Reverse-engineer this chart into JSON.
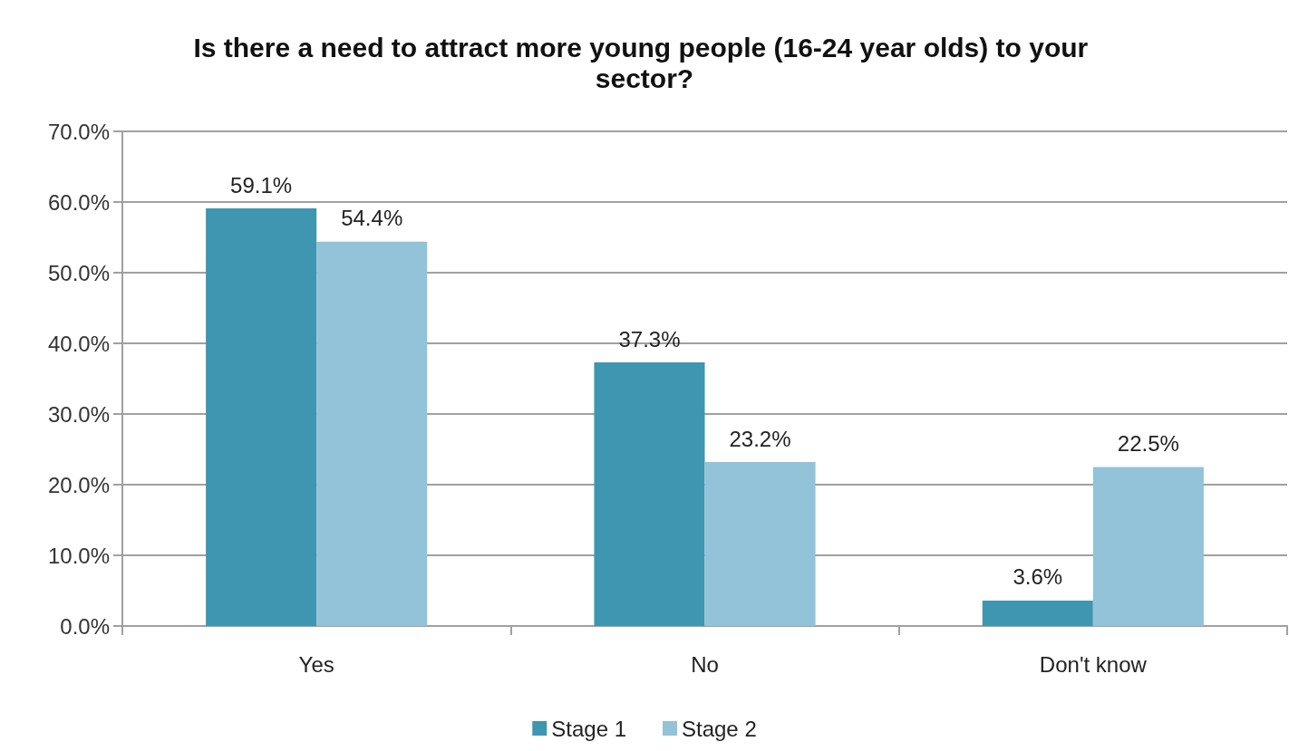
{
  "chart_data": {
    "type": "bar",
    "title": "Is there a need to attract more young people (16-24 year olds) to your sector?",
    "categories": [
      "Yes",
      "No",
      "Don't know"
    ],
    "series": [
      {
        "name": "Stage 1",
        "color": "#3f96b0",
        "values": [
          59.1,
          37.3,
          3.6
        ],
        "value_labels": [
          "59.1%",
          "37.3%",
          "3.6%"
        ]
      },
      {
        "name": "Stage 2",
        "color": "#92c3d8",
        "values": [
          54.4,
          23.2,
          22.5
        ],
        "value_labels": [
          "54.4%",
          "23.2%",
          "22.5%"
        ]
      }
    ],
    "ylim": [
      0,
      70
    ],
    "yticks": [
      {
        "value": 0,
        "label": "0.0%"
      },
      {
        "value": 10,
        "label": "10.0%"
      },
      {
        "value": 20,
        "label": "20.0%"
      },
      {
        "value": 30,
        "label": "30.0%"
      },
      {
        "value": 40,
        "label": "40.0%"
      },
      {
        "value": 50,
        "label": "50.0%"
      },
      {
        "value": 60,
        "label": "60.0%"
      },
      {
        "value": 70,
        "label": "70.0%"
      }
    ],
    "grid": "y",
    "legend": "bottom"
  }
}
